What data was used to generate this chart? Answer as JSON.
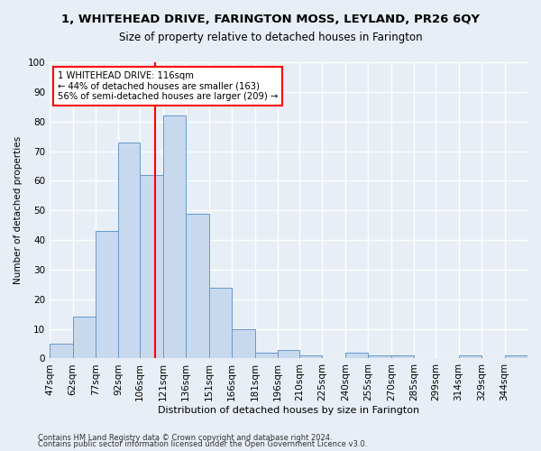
{
  "title": "1, WHITEHEAD DRIVE, FARINGTON MOSS, LEYLAND, PR26 6QY",
  "subtitle": "Size of property relative to detached houses in Farington",
  "xlabel": "Distribution of detached houses by size in Farington",
  "ylabel": "Number of detached properties",
  "bin_labels": [
    "47sqm",
    "62sqm",
    "77sqm",
    "92sqm",
    "106sqm",
    "121sqm",
    "136sqm",
    "151sqm",
    "166sqm",
    "181sqm",
    "196sqm",
    "210sqm",
    "225sqm",
    "240sqm",
    "255sqm",
    "270sqm",
    "285sqm",
    "299sqm",
    "314sqm",
    "329sqm",
    "344sqm"
  ],
  "bin_edges": [
    47,
    62,
    77,
    92,
    106,
    121,
    136,
    151,
    166,
    181,
    196,
    210,
    225,
    240,
    255,
    270,
    285,
    299,
    314,
    329,
    344
  ],
  "bar_widths": [
    15,
    15,
    15,
    14,
    15,
    15,
    15,
    15,
    15,
    15,
    14,
    15,
    15,
    15,
    15,
    15,
    14,
    15,
    15,
    15,
    15
  ],
  "bar_heights": [
    5,
    14,
    43,
    73,
    62,
    82,
    49,
    24,
    10,
    2,
    3,
    1,
    0,
    2,
    1,
    1,
    0,
    0,
    1,
    0,
    1
  ],
  "bar_color": "#c8d9ee",
  "bar_edge_color": "#6699cc",
  "reference_line_x": 116,
  "reference_line_color": "red",
  "annotation_text": "1 WHITEHEAD DRIVE: 116sqm\n← 44% of detached houses are smaller (163)\n56% of semi-detached houses are larger (209) →",
  "annotation_box_color": "white",
  "annotation_box_edge_color": "red",
  "ylim": [
    0,
    100
  ],
  "xlim": [
    47,
    359
  ],
  "background_color": "#e8eef5",
  "plot_background": "#e8eef5",
  "grid_color": "white",
  "footer_line1": "Contains HM Land Registry data © Crown copyright and database right 2024.",
  "footer_line2": "Contains public sector information licensed under the Open Government Licence v3.0."
}
